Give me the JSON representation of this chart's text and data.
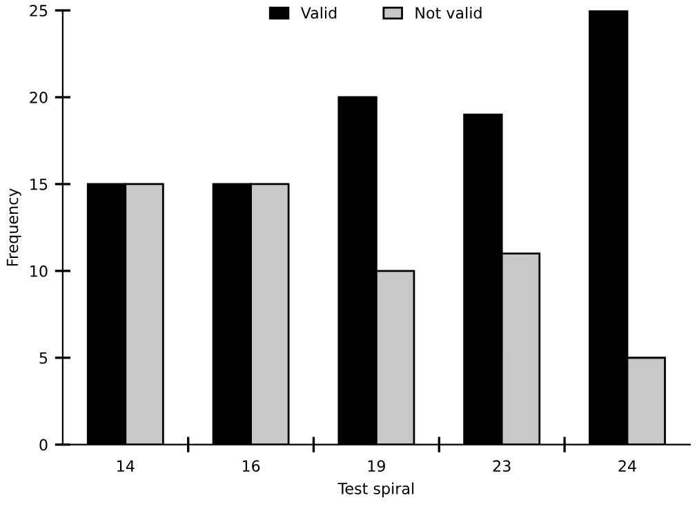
{
  "chart_data": {
    "type": "bar",
    "xlabel": "Test spiral",
    "ylabel": "Frequency",
    "categories": [
      "14",
      "16",
      "19",
      "23",
      "24"
    ],
    "series": [
      {
        "name": "Valid",
        "color": "#000000",
        "values": [
          15,
          15,
          20,
          19,
          25
        ]
      },
      {
        "name": "Not valid",
        "color": "#c8c8c8",
        "values": [
          15,
          15,
          10,
          11,
          5
        ]
      }
    ],
    "ylim": [
      0,
      25
    ],
    "yticks": [
      0,
      5,
      10,
      15,
      20,
      25
    ],
    "grid": false,
    "legend": "top"
  }
}
